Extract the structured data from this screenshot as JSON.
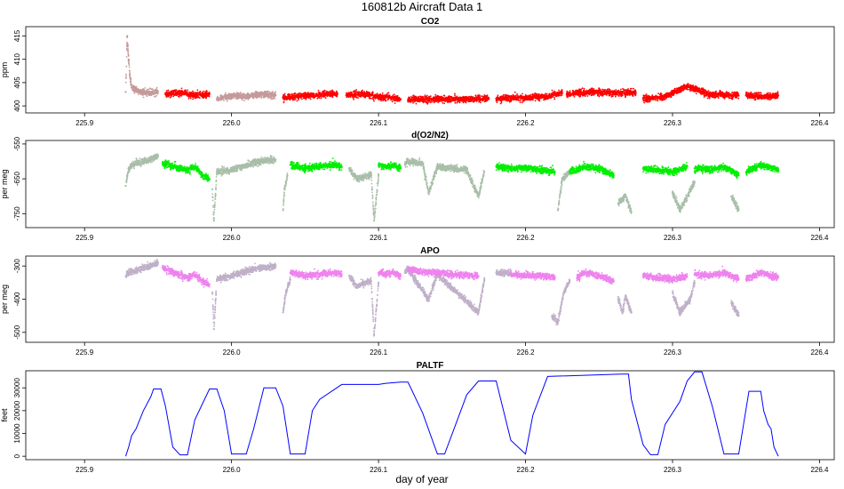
{
  "figure": {
    "title": "160812b    Aircraft Data 1",
    "xlabel": "day of year"
  },
  "chart_data": [
    {
      "type": "scatter",
      "title": "CO2",
      "ylabel": "ppm",
      "xlim": [
        225.86,
        226.41
      ],
      "ylim": [
        398.5,
        417
      ],
      "xticks": [
        225.9,
        226.0,
        226.1,
        226.2,
        226.3,
        226.4
      ],
      "yticks": [
        400,
        405,
        410,
        415
      ],
      "series": [
        {
          "color": "#c49a9a",
          "x": [
            225.928,
            225.929,
            225.93,
            225.931,
            225.932,
            225.934,
            225.937,
            225.94,
            225.945,
            225.95
          ],
          "y": [
            403,
            415,
            410,
            406,
            404,
            403.5,
            403.2,
            403,
            402.8,
            403
          ]
        },
        {
          "color": "#ff0000",
          "x": [
            225.955,
            225.965,
            225.975,
            225.985
          ],
          "y": [
            402.5,
            402.8,
            402.3,
            402.5
          ]
        },
        {
          "color": "#c49a9a",
          "x": [
            225.99,
            226.0,
            226.01,
            226.02,
            226.03
          ],
          "y": [
            401.5,
            402.2,
            402.0,
            402.5,
            402.3
          ]
        },
        {
          "color": "#ff0000",
          "x": [
            226.035,
            226.05,
            226.065,
            226.072
          ],
          "y": [
            401.8,
            402.2,
            402.5,
            402.6
          ]
        },
        {
          "color": "#ff0000",
          "x": [
            226.078,
            226.09,
            226.1,
            226.11,
            226.115
          ],
          "y": [
            402.3,
            402.5,
            402.0,
            401.8,
            401.5
          ]
        },
        {
          "color": "#ff0000",
          "x": [
            226.12,
            226.14,
            226.16,
            226.175
          ],
          "y": [
            401.3,
            401.5,
            401.4,
            401.6
          ]
        },
        {
          "color": "#ff0000",
          "x": [
            226.18,
            226.2,
            226.215,
            226.225
          ],
          "y": [
            401.5,
            401.8,
            402.0,
            402.8
          ]
        },
        {
          "color": "#ff0000",
          "x": [
            226.228,
            226.245,
            226.26,
            226.275
          ],
          "y": [
            402.5,
            403.0,
            402.8,
            402.8
          ]
        },
        {
          "color": "#ff0000",
          "x": [
            226.28,
            226.295,
            226.31,
            226.325,
            226.345
          ],
          "y": [
            401.5,
            402.0,
            404.2,
            402.5,
            402.2
          ]
        },
        {
          "color": "#ff0000",
          "x": [
            226.35,
            226.36,
            226.372
          ],
          "y": [
            402.3,
            402.0,
            402.2
          ]
        }
      ]
    },
    {
      "type": "scatter",
      "title": "d(O2/N2)",
      "ylabel": "per meg",
      "xlim": [
        225.86,
        226.41
      ],
      "ylim": [
        -790,
        -540
      ],
      "xticks": [
        225.9,
        226.0,
        226.1,
        226.2,
        226.3,
        226.4
      ],
      "yticks": [
        -550,
        -650,
        -750
      ],
      "series": [
        {
          "color": "#a8bea8",
          "x": [
            225.928,
            225.929,
            225.931,
            225.935,
            225.94,
            225.945,
            225.95
          ],
          "y": [
            -670,
            -640,
            -615,
            -605,
            -600,
            -595,
            -585
          ]
        },
        {
          "color": "#00ee00",
          "x": [
            225.953,
            225.96,
            225.97,
            225.975,
            225.98,
            225.985
          ],
          "y": [
            -605,
            -615,
            -625,
            -615,
            -640,
            -650
          ]
        },
        {
          "color": "#a8bea8",
          "x": [
            225.987,
            225.988,
            225.99,
            226.0,
            226.01,
            226.02,
            226.03
          ],
          "y": [
            -680,
            -770,
            -630,
            -625,
            -610,
            -600,
            -595
          ]
        },
        {
          "color": "#a8bea8",
          "x": [
            226.035,
            226.036,
            226.038
          ],
          "y": [
            -740,
            -680,
            -640
          ]
        },
        {
          "color": "#00ee00",
          "x": [
            226.04,
            226.05,
            226.06,
            226.07,
            226.075
          ],
          "y": [
            -610,
            -620,
            -615,
            -610,
            -615
          ]
        },
        {
          "color": "#a8bea8",
          "x": [
            226.08,
            226.085,
            226.095,
            226.097,
            226.1
          ],
          "y": [
            -620,
            -650,
            -640,
            -770,
            -640
          ]
        },
        {
          "color": "#00ee00",
          "x": [
            226.1,
            226.105,
            226.11,
            226.115
          ],
          "y": [
            -610,
            -615,
            -610,
            -620
          ]
        },
        {
          "color": "#a8bea8",
          "x": [
            226.118,
            226.12,
            226.13,
            226.134,
            226.14,
            226.15,
            226.16,
            226.168,
            226.172
          ],
          "y": [
            -610,
            -600,
            -605,
            -690,
            -615,
            -620,
            -625,
            -700,
            -630
          ]
        },
        {
          "color": "#00ee00",
          "x": [
            226.18,
            226.19,
            226.2,
            226.21,
            226.22
          ],
          "y": [
            -615,
            -620,
            -618,
            -625,
            -630
          ]
        },
        {
          "color": "#a8bea8",
          "x": [
            226.222,
            226.225,
            226.23
          ],
          "y": [
            -740,
            -650,
            -630
          ]
        },
        {
          "color": "#00ee00",
          "x": [
            226.23,
            226.24,
            226.25,
            226.26
          ],
          "y": [
            -630,
            -615,
            -620,
            -640
          ]
        },
        {
          "color": "#a8bea8",
          "x": [
            226.263,
            226.268,
            226.272
          ],
          "y": [
            -720,
            -700,
            -745
          ]
        },
        {
          "color": "#00ee00",
          "x": [
            226.28,
            226.29,
            226.3,
            226.31
          ],
          "y": [
            -620,
            -625,
            -630,
            -615
          ]
        },
        {
          "color": "#a8bea8",
          "x": [
            226.3,
            226.305,
            226.315
          ],
          "y": [
            -690,
            -740,
            -660
          ]
        },
        {
          "color": "#00ee00",
          "x": [
            226.315,
            226.325,
            226.335,
            226.345
          ],
          "y": [
            -620,
            -625,
            -615,
            -640
          ]
        },
        {
          "color": "#a8bea8",
          "x": [
            226.34,
            226.345
          ],
          "y": [
            -700,
            -740
          ]
        },
        {
          "color": "#00ee00",
          "x": [
            226.35,
            226.36,
            226.372
          ],
          "y": [
            -630,
            -610,
            -625
          ]
        }
      ]
    },
    {
      "type": "scatter",
      "title": "APO",
      "ylabel": "per meg",
      "xlim": [
        225.86,
        226.41
      ],
      "ylim": [
        -530,
        -270
      ],
      "xticks": [
        225.9,
        226.0,
        226.1,
        226.2,
        226.3,
        226.4
      ],
      "yticks": [
        -300,
        -400,
        -500
      ],
      "series": [
        {
          "color": "#bfb0c8",
          "x": [
            225.928,
            225.93,
            225.935,
            225.94,
            225.945,
            225.95
          ],
          "y": [
            -330,
            -320,
            -315,
            -305,
            -300,
            -290
          ]
        },
        {
          "color": "#ee82ee",
          "x": [
            225.953,
            225.96,
            225.97,
            225.975,
            225.98,
            225.985
          ],
          "y": [
            -305,
            -320,
            -335,
            -325,
            -345,
            -355
          ]
        },
        {
          "color": "#bfb0c8",
          "x": [
            225.987,
            225.988,
            225.99,
            226.0,
            226.01,
            226.02,
            226.03
          ],
          "y": [
            -380,
            -490,
            -340,
            -330,
            -315,
            -305,
            -300
          ]
        },
        {
          "color": "#bfb0c8",
          "x": [
            226.035,
            226.037,
            226.04
          ],
          "y": [
            -440,
            -380,
            -340
          ]
        },
        {
          "color": "#ee82ee",
          "x": [
            226.04,
            226.05,
            226.06,
            226.07,
            226.075
          ],
          "y": [
            -320,
            -330,
            -325,
            -320,
            -325
          ]
        },
        {
          "color": "#bfb0c8",
          "x": [
            226.08,
            226.085,
            226.095,
            226.097,
            226.1
          ],
          "y": [
            -330,
            -360,
            -345,
            -510,
            -350
          ]
        },
        {
          "color": "#ee82ee",
          "x": [
            226.1,
            226.105,
            226.11,
            226.115
          ],
          "y": [
            -320,
            -325,
            -320,
            -330
          ]
        },
        {
          "color": "#bfb0c8",
          "x": [
            226.118,
            226.12,
            226.134,
            226.14,
            226.168,
            226.172
          ],
          "y": [
            -320,
            -310,
            -400,
            -325,
            -440,
            -340
          ]
        },
        {
          "color": "#ee82ee",
          "x": [
            226.12,
            226.13,
            226.14,
            226.15,
            226.16,
            226.168
          ],
          "y": [
            -310,
            -318,
            -320,
            -325,
            -328,
            -330
          ]
        },
        {
          "color": "#bfb0c8",
          "x": [
            226.18,
            226.19
          ],
          "y": [
            -320,
            -322
          ]
        },
        {
          "color": "#ee82ee",
          "x": [
            226.19,
            226.2,
            226.21,
            226.22
          ],
          "y": [
            -325,
            -328,
            -330,
            -335
          ]
        },
        {
          "color": "#bfb0c8",
          "x": [
            226.218,
            226.222,
            226.226,
            226.23
          ],
          "y": [
            -450,
            -470,
            -380,
            -345
          ]
        },
        {
          "color": "#ee82ee",
          "x": [
            226.235,
            226.24,
            226.25,
            226.26
          ],
          "y": [
            -335,
            -320,
            -330,
            -345
          ]
        },
        {
          "color": "#bfb0c8",
          "x": [
            226.263,
            226.266,
            226.268,
            226.272
          ],
          "y": [
            -400,
            -440,
            -390,
            -440
          ]
        },
        {
          "color": "#ee82ee",
          "x": [
            226.28,
            226.29,
            226.3,
            226.31
          ],
          "y": [
            -330,
            -335,
            -340,
            -330
          ]
        },
        {
          "color": "#bfb0c8",
          "x": [
            226.3,
            226.305,
            226.312,
            226.315
          ],
          "y": [
            -380,
            -440,
            -400,
            -350
          ]
        },
        {
          "color": "#ee82ee",
          "x": [
            226.315,
            226.325,
            226.335,
            226.345
          ],
          "y": [
            -325,
            -330,
            -320,
            -340
          ]
        },
        {
          "color": "#bfb0c8",
          "x": [
            226.34,
            226.345
          ],
          "y": [
            -410,
            -450
          ]
        },
        {
          "color": "#ee82ee",
          "x": [
            226.35,
            226.36,
            226.372
          ],
          "y": [
            -340,
            -320,
            -335
          ]
        }
      ]
    },
    {
      "type": "line",
      "title": "PALTF",
      "ylabel": "feet",
      "xlim": [
        225.86,
        226.41
      ],
      "ylim": [
        -1500,
        37500
      ],
      "xticks": [
        225.9,
        226.0,
        226.1,
        226.2,
        226.3,
        226.4
      ],
      "yticks": [
        0,
        10000,
        20000,
        30000
      ],
      "series": [
        {
          "color": "#0000ff",
          "x": [
            225.928,
            225.93,
            225.932,
            225.935,
            225.94,
            225.945,
            225.947,
            225.952,
            225.955,
            225.96,
            225.965,
            225.97,
            225.975,
            225.978,
            225.985,
            225.99,
            225.995,
            226.0,
            226.01,
            226.015,
            226.022,
            226.03,
            226.035,
            226.04,
            226.05,
            226.055,
            226.06,
            226.075,
            226.1,
            226.105,
            226.115,
            226.12,
            226.13,
            226.14,
            226.145,
            226.16,
            226.168,
            226.18,
            226.19,
            226.2,
            226.205,
            226.215,
            226.265,
            226.27,
            226.272,
            226.28,
            226.285,
            226.29,
            226.295,
            226.305,
            226.31,
            226.315,
            226.32,
            226.327,
            226.335,
            226.345,
            226.352,
            226.36,
            226.362,
            226.365,
            226.367,
            226.369,
            226.372
          ],
          "y": [
            0,
            4000,
            9000,
            12000,
            20000,
            26000,
            29500,
            29500,
            22000,
            4000,
            600,
            600,
            16000,
            20000,
            29500,
            29500,
            20000,
            1000,
            1000,
            12000,
            30000,
            30000,
            22000,
            1000,
            1000,
            20000,
            25000,
            31500,
            31500,
            32000,
            32500,
            32500,
            19000,
            1000,
            1000,
            27000,
            33000,
            33000,
            7000,
            1000,
            18000,
            35000,
            36000,
            36000,
            25000,
            5000,
            700,
            700,
            14000,
            24000,
            33000,
            37000,
            37000,
            22000,
            1000,
            1000,
            28500,
            28500,
            20000,
            14000,
            12000,
            4000,
            0
          ]
        }
      ]
    }
  ]
}
